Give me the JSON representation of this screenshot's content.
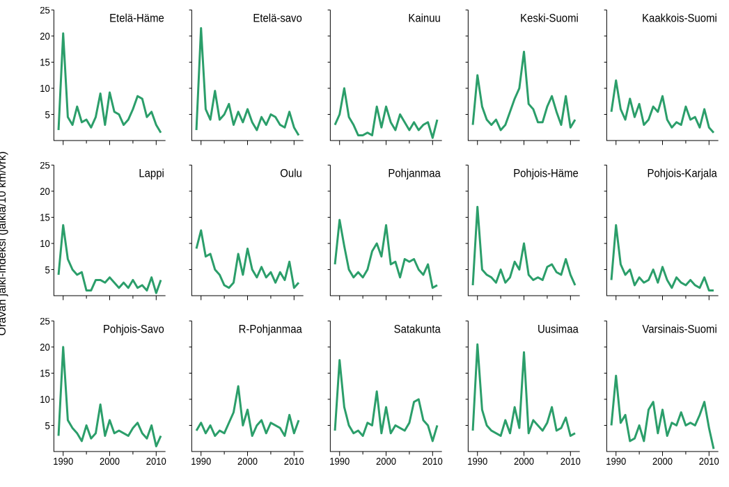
{
  "figure": {
    "y_axis_label": "Oravan jälki-indeksi (jälkiä/10 km/vrk)",
    "y_axis_fontsize": 16,
    "panel_title_fontsize": 16,
    "tick_fontsize": 14,
    "line_color": "#2b9e6a",
    "line_width": 3,
    "axis_color": "#000000",
    "background_color": "#ffffff",
    "xlim": [
      1988,
      2012
    ],
    "ylim": [
      0,
      25
    ],
    "xticks_major": [
      1990,
      2000,
      2010
    ],
    "xticks_minor": [
      1995,
      2005
    ],
    "yticks": [
      5,
      10,
      15,
      20,
      25
    ],
    "years": [
      1989,
      1990,
      1991,
      1992,
      1993,
      1994,
      1995,
      1996,
      1997,
      1998,
      1999,
      2000,
      2001,
      2002,
      2003,
      2004,
      2005,
      2006,
      2007,
      2008,
      2009,
      2010,
      2011
    ],
    "rows": 3,
    "cols": 5,
    "panels": [
      {
        "title": "Etelä-Häme",
        "values": [
          2.0,
          20.5,
          4.5,
          3.0,
          6.5,
          3.5,
          4.0,
          2.5,
          4.5,
          9.0,
          3.0,
          9.2,
          5.5,
          5.0,
          3.0,
          4.0,
          6.0,
          8.5,
          8.0,
          4.5,
          5.5,
          3.0,
          1.5
        ]
      },
      {
        "title": "Etelä-savo",
        "values": [
          2.0,
          21.5,
          6.0,
          4.0,
          9.5,
          4.0,
          5.0,
          7.0,
          3.0,
          5.5,
          3.5,
          6.0,
          3.5,
          2.0,
          4.5,
          3.0,
          5.0,
          4.5,
          3.0,
          2.5,
          5.5,
          2.5,
          1.0
        ]
      },
      {
        "title": "Kainuu",
        "values": [
          3.0,
          5.0,
          10.0,
          4.5,
          3.0,
          1.0,
          1.0,
          1.5,
          1.0,
          6.5,
          2.5,
          6.5,
          3.5,
          2.0,
          5.0,
          3.5,
          2.0,
          3.5,
          2.0,
          3.0,
          3.5,
          0.5,
          4.0
        ]
      },
      {
        "title": "Keski-Suomi",
        "values": [
          3.0,
          12.5,
          6.5,
          4.0,
          3.0,
          4.0,
          2.0,
          3.0,
          5.5,
          8.0,
          10.0,
          17.0,
          7.0,
          6.0,
          3.5,
          3.5,
          6.5,
          8.5,
          5.5,
          3.0,
          8.5,
          2.5,
          4.0
        ]
      },
      {
        "title": "Kaakkois-Suomi",
        "values": [
          5.5,
          11.5,
          6.0,
          4.0,
          8.0,
          4.5,
          7.0,
          3.0,
          4.0,
          6.5,
          5.5,
          8.5,
          4.0,
          2.5,
          3.5,
          3.0,
          6.5,
          4.0,
          4.5,
          2.5,
          6.0,
          2.5,
          1.5
        ]
      },
      {
        "title": "Lappi",
        "values": [
          4.0,
          13.5,
          7.0,
          5.0,
          4.0,
          4.5,
          1.0,
          1.0,
          3.0,
          3.0,
          2.5,
          3.5,
          2.5,
          1.5,
          2.5,
          1.5,
          3.0,
          1.5,
          2.0,
          1.0,
          3.5,
          0.5,
          3.0
        ]
      },
      {
        "title": "Oulu",
        "values": [
          9.0,
          12.5,
          7.5,
          8.0,
          5.0,
          4.0,
          2.0,
          1.5,
          2.5,
          8.0,
          4.0,
          9.0,
          5.0,
          3.5,
          5.5,
          3.5,
          4.5,
          2.5,
          4.5,
          3.0,
          6.5,
          1.5,
          2.5
        ]
      },
      {
        "title": "Pohjanmaa",
        "values": [
          6.0,
          14.5,
          9.5,
          5.0,
          3.5,
          4.5,
          3.5,
          5.0,
          8.5,
          10.0,
          7.5,
          13.5,
          6.0,
          6.5,
          3.5,
          7.0,
          6.5,
          7.0,
          5.0,
          4.0,
          6.0,
          1.5,
          2.0
        ]
      },
      {
        "title": "Pohjois-Häme",
        "values": [
          2.0,
          17.0,
          5.0,
          4.0,
          3.5,
          2.5,
          5.0,
          2.5,
          3.5,
          6.5,
          5.0,
          10.0,
          4.0,
          3.0,
          3.5,
          3.0,
          5.5,
          6.0,
          4.5,
          4.0,
          7.0,
          4.0,
          2.0
        ]
      },
      {
        "title": "Pohjois-Karjala",
        "values": [
          3.0,
          13.5,
          6.0,
          4.0,
          5.0,
          2.0,
          3.5,
          2.5,
          3.0,
          5.0,
          2.5,
          5.5,
          3.0,
          1.5,
          3.5,
          2.5,
          2.0,
          3.0,
          2.0,
          1.5,
          3.5,
          1.0,
          1.0
        ]
      },
      {
        "title": "Pohjois-Savo",
        "values": [
          3.0,
          20.0,
          6.0,
          4.5,
          3.5,
          2.0,
          5.0,
          2.5,
          3.5,
          9.0,
          3.0,
          6.0,
          3.5,
          4.0,
          3.5,
          3.0,
          4.5,
          5.5,
          3.5,
          2.5,
          5.0,
          1.0,
          3.0
        ]
      },
      {
        "title": "R-Pohjanmaa",
        "values": [
          4.0,
          5.5,
          3.5,
          5.0,
          3.0,
          4.0,
          3.5,
          5.5,
          7.5,
          12.5,
          5.0,
          8.0,
          3.0,
          5.0,
          6.0,
          3.5,
          5.5,
          5.0,
          4.5,
          3.0,
          7.0,
          3.5,
          6.0
        ]
      },
      {
        "title": "Satakunta",
        "values": [
          4.0,
          17.5,
          8.5,
          5.0,
          3.5,
          4.0,
          3.0,
          5.5,
          5.0,
          11.5,
          3.5,
          8.5,
          3.5,
          5.0,
          4.5,
          4.0,
          5.5,
          9.5,
          10.0,
          6.0,
          5.0,
          2.0,
          5.0
        ]
      },
      {
        "title": "Uusimaa",
        "values": [
          4.0,
          20.5,
          8.0,
          5.0,
          4.0,
          3.5,
          3.0,
          6.0,
          3.5,
          8.5,
          4.5,
          19.0,
          3.5,
          6.0,
          5.0,
          4.0,
          5.5,
          8.5,
          4.0,
          4.5,
          6.5,
          3.0,
          3.5
        ]
      },
      {
        "title": "Varsinais-Suomi",
        "values": [
          5.0,
          14.5,
          5.5,
          7.0,
          2.0,
          2.5,
          5.0,
          2.0,
          8.0,
          9.5,
          3.5,
          8.0,
          3.0,
          5.5,
          5.0,
          7.5,
          5.0,
          5.5,
          5.0,
          7.0,
          9.5,
          4.5,
          0.5
        ]
      }
    ]
  }
}
